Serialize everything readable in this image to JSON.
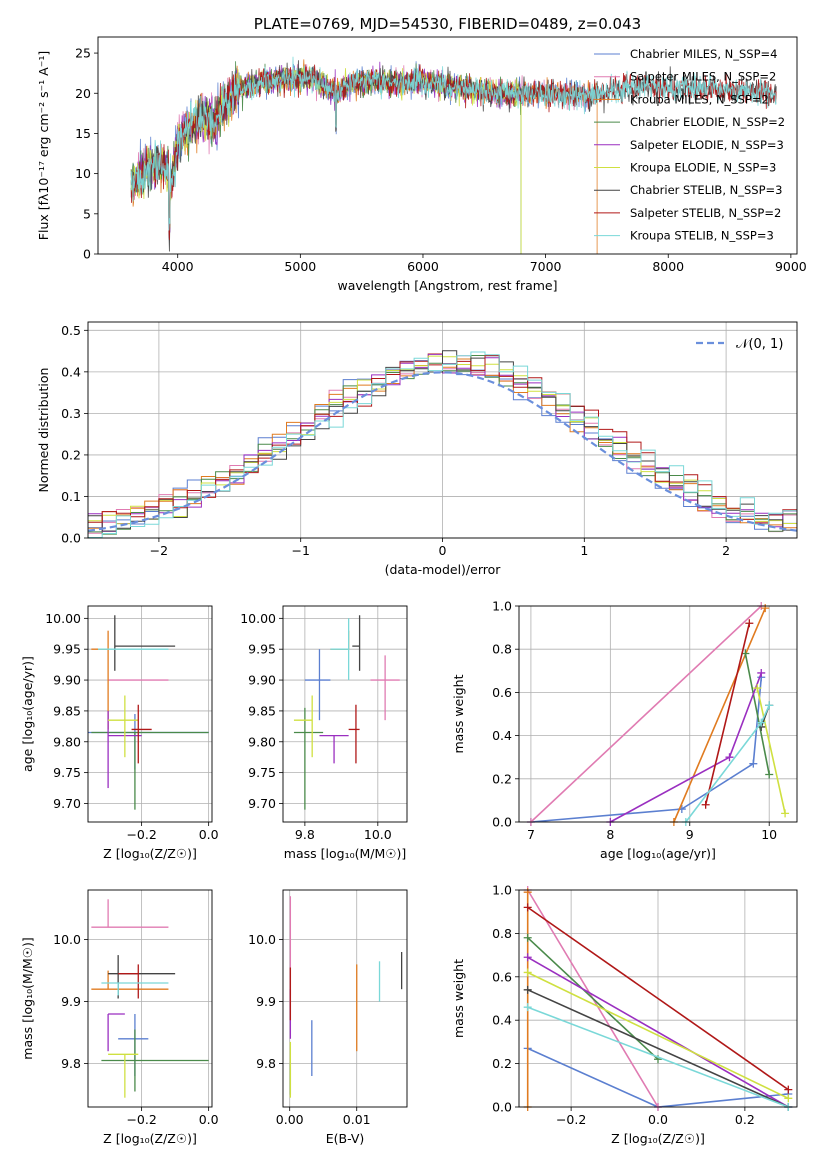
{
  "chart_data": [
    {
      "id": "spectrum",
      "type": "line",
      "title": "PLATE=0769, MJD=54530, FIBERID=0489, z=0.043",
      "xlabel": "wavelength [Angstrom, rest frame]",
      "ylabel": "Flux [fλ10⁻¹⁷ erg cm⁻² s⁻¹ A⁻¹]",
      "xlim": [
        3350,
        9050
      ],
      "ylim": [
        0,
        27
      ],
      "xticks": [
        "4000",
        "5000",
        "6000",
        "7000",
        "8000",
        "9000"
      ],
      "yticks": [
        "0",
        "5",
        "10",
        "15",
        "20",
        "25"
      ],
      "grid": false,
      "legend_position": "top-right",
      "continuum": [
        [
          3620,
          8.5
        ],
        [
          3700,
          10
        ],
        [
          3800,
          11
        ],
        [
          3900,
          11
        ],
        [
          3950,
          9
        ],
        [
          4000,
          14
        ],
        [
          4100,
          16
        ],
        [
          4200,
          17
        ],
        [
          4300,
          16.5
        ],
        [
          4400,
          19
        ],
        [
          4500,
          20.5
        ],
        [
          4700,
          21.5
        ],
        [
          4900,
          21.8
        ],
        [
          5100,
          22
        ],
        [
          5300,
          20
        ],
        [
          5400,
          21.2
        ],
        [
          5600,
          21.5
        ],
        [
          5800,
          21.3
        ],
        [
          6000,
          21.5
        ],
        [
          6200,
          21
        ],
        [
          6400,
          20.5
        ],
        [
          6600,
          20
        ],
        [
          6800,
          20
        ],
        [
          7000,
          20
        ],
        [
          7200,
          19.8
        ],
        [
          7400,
          19.7
        ],
        [
          7600,
          20.5
        ],
        [
          7800,
          21
        ],
        [
          8000,
          20.5
        ],
        [
          8200,
          20.8
        ],
        [
          8400,
          20.5
        ],
        [
          8600,
          20.3
        ],
        [
          8800,
          20
        ],
        [
          8880,
          20
        ]
      ],
      "series": [
        {
          "name": "Chabrier MILES, N_SSP=4",
          "color": "#5b7fd0",
          "range": [
            3620,
            7420
          ]
        },
        {
          "name": "Salpeter MILES, N_SSP=2",
          "color": "#e07bb2",
          "range": [
            3620,
            7420
          ]
        },
        {
          "name": "Kroupa MILES, N_SSP=2",
          "color": "#e07b20",
          "range": [
            3620,
            7420
          ],
          "drop_at": 7420
        },
        {
          "name": "Chabrier ELODIE, N_SSP=2",
          "color": "#4a8a4a",
          "range": [
            3620,
            6800
          ],
          "drop_at": 6800
        },
        {
          "name": "Salpeter ELODIE, N_SSP=3",
          "color": "#9a2fc0",
          "range": [
            3620,
            6800
          ]
        },
        {
          "name": "Kroupa ELODIE, N_SSP=3",
          "color": "#cfe040",
          "range": [
            3620,
            6800
          ],
          "drop_at": 6800
        },
        {
          "name": "Chabrier STELIB, N_SSP=3",
          "color": "#444444",
          "range": [
            3620,
            8880
          ]
        },
        {
          "name": "Salpeter STELIB, N_SSP=2",
          "color": "#b01818",
          "range": [
            3620,
            8880
          ]
        },
        {
          "name": "Kroupa STELIB, N_SSP=3",
          "color": "#7ad8d8",
          "range": [
            3620,
            8880
          ]
        }
      ]
    },
    {
      "id": "residuals",
      "type": "line",
      "xlabel": "(data-model)/error",
      "ylabel": "Normed distribution",
      "xlim": [
        -2.5,
        2.5
      ],
      "ylim": [
        0,
        0.52
      ],
      "xticks": [
        "−2",
        "−1",
        "0",
        "1",
        "2"
      ],
      "yticks": [
        "0.0",
        "0.1",
        "0.2",
        "0.3",
        "0.4",
        "0.5"
      ],
      "grid": true,
      "legend_position": "top-right",
      "legend": [
        "𝒩(0, 1)"
      ],
      "bin_width": 0.1,
      "colors": [
        "#5b7fd0",
        "#e07bb2",
        "#e07b20",
        "#4a8a4a",
        "#9a2fc0",
        "#cfe040",
        "#444444",
        "#b01818",
        "#7ad8d8"
      ]
    },
    {
      "id": "age-vs-Z",
      "type": "scatter",
      "xlabel": "Z [log₁₀(Z/Z☉)]",
      "ylabel": "age  [log₁₀(age/yr)]",
      "xlim": [
        -0.36,
        0.01
      ],
      "ylim": [
        9.67,
        10.02
      ],
      "xticks": [
        "−0.2",
        "0.0"
      ],
      "yticks": [
        "9.70",
        "9.75",
        "9.80",
        "9.85",
        "9.90",
        "9.95",
        "10.00"
      ],
      "grid": true,
      "points": [
        {
          "x": -0.22,
          "y": 9.815,
          "xerr": [
            0.22,
            0.22
          ],
          "yerr": [
            0.06,
            0.03
          ],
          "color": "#5b7fd0"
        },
        {
          "x": -0.3,
          "y": 9.9,
          "xerr": [
            0.0,
            0.18
          ],
          "yerr": [
            0.0,
            0.0
          ],
          "color": "#e07bb2"
        },
        {
          "x": -0.3,
          "y": 9.95,
          "xerr": [
            0.05,
            0.0
          ],
          "yerr": [
            0.13,
            0.03
          ],
          "color": "#e07b20"
        },
        {
          "x": -0.22,
          "y": 9.815,
          "xerr": [
            0.13,
            0.22
          ],
          "yerr": [
            0.125,
            0.0
          ],
          "color": "#4a8a4a"
        },
        {
          "x": -0.3,
          "y": 9.81,
          "xerr": [
            0.0,
            0.1
          ],
          "yerr": [
            0.085,
            0.04
          ],
          "color": "#9a2fc0"
        },
        {
          "x": -0.25,
          "y": 9.835,
          "xerr": [
            0.05,
            0.04
          ],
          "yerr": [
            0.06,
            0.04
          ],
          "color": "#cfe040"
        },
        {
          "x": -0.28,
          "y": 9.955,
          "xerr": [
            0.0,
            0.18
          ],
          "yerr": [
            0.04,
            0.05
          ],
          "color": "#444444"
        },
        {
          "x": -0.21,
          "y": 9.82,
          "xerr": [
            0.02,
            0.04
          ],
          "yerr": [
            0.055,
            0.04
          ],
          "color": "#b01818"
        },
        {
          "x": -0.28,
          "y": 9.95,
          "xerr": [
            0.05,
            0.16
          ],
          "yerr": [
            0.0,
            0.0
          ],
          "color": "#7ad8d8"
        }
      ]
    },
    {
      "id": "age-vs-mass",
      "type": "scatter",
      "xlabel": "mass [log₁₀(M/M☉)]",
      "xlim": [
        9.74,
        10.08
      ],
      "ylim": [
        9.67,
        10.02
      ],
      "xticks": [
        "9.8",
        "10.0"
      ],
      "yticks": [
        "9.70",
        "9.75",
        "9.80",
        "9.85",
        "9.90",
        "9.95",
        "10.00"
      ],
      "grid": true,
      "points": [
        {
          "x": 9.84,
          "y": 9.9,
          "xerr": [
            0.04,
            0.03
          ],
          "yerr": [
            0.065,
            0.05
          ],
          "color": "#5b7fd0"
        },
        {
          "x": 10.02,
          "y": 9.9,
          "xerr": [
            0.04,
            0.04
          ],
          "yerr": [
            0.065,
            0.04
          ],
          "color": "#e07bb2"
        },
        {
          "x": 9.92,
          "y": 9.95,
          "xerr": [
            0.05,
            0.0
          ],
          "yerr": [
            0.0,
            0.03
          ],
          "color": "#e07b20"
        },
        {
          "x": 9.8,
          "y": 9.815,
          "xerr": [
            0.03,
            0.05
          ],
          "yerr": [
            0.125,
            0.04
          ],
          "color": "#4a8a4a"
        },
        {
          "x": 9.88,
          "y": 9.81,
          "xerr": [
            0.04,
            0.04
          ],
          "yerr": [
            0.045,
            0.0
          ],
          "color": "#9a2fc0"
        },
        {
          "x": 9.82,
          "y": 9.835,
          "xerr": [
            0.05,
            0.0
          ],
          "yerr": [
            0.06,
            0.04
          ],
          "color": "#cfe040"
        },
        {
          "x": 9.95,
          "y": 9.955,
          "xerr": [
            0.02,
            0.0
          ],
          "yerr": [
            0.04,
            0.05
          ],
          "color": "#444444"
        },
        {
          "x": 9.94,
          "y": 9.82,
          "xerr": [
            0.02,
            0.01
          ],
          "yerr": [
            0.055,
            0.04
          ],
          "color": "#b01818"
        },
        {
          "x": 9.92,
          "y": 9.95,
          "xerr": [
            0.05,
            0.0
          ],
          "yerr": [
            0.05,
            0.05
          ],
          "color": "#7ad8d8"
        }
      ]
    },
    {
      "id": "weight-vs-age",
      "type": "line",
      "xlabel": "age  [log₁₀(age/yr)]",
      "ylabel": "mass weight",
      "xlim": [
        6.85,
        10.35
      ],
      "ylim": [
        0,
        1
      ],
      "xticks": [
        "7",
        "8",
        "9",
        "10"
      ],
      "yticks": [
        "0.0",
        "0.2",
        "0.4",
        "0.6",
        "0.8",
        "1.0"
      ],
      "grid": true,
      "series": [
        {
          "color": "#5b7fd0",
          "points": [
            [
              7.0,
              0.0
            ],
            [
              8.9,
              0.06
            ],
            [
              9.8,
              0.27
            ],
            [
              9.9,
              0.67
            ]
          ]
        },
        {
          "color": "#e07bb2",
          "points": [
            [
              7.0,
              0.0
            ],
            [
              9.9,
              1.0
            ]
          ]
        },
        {
          "color": "#e07b20",
          "points": [
            [
              8.8,
              0.0
            ],
            [
              9.95,
              0.99
            ]
          ]
        },
        {
          "color": "#4a8a4a",
          "points": [
            [
              9.7,
              0.78
            ],
            [
              10.0,
              0.22
            ]
          ]
        },
        {
          "color": "#9a2fc0",
          "points": [
            [
              8.0,
              0.0
            ],
            [
              9.5,
              0.3
            ],
            [
              9.9,
              0.69
            ]
          ]
        },
        {
          "color": "#cfe040",
          "points": [
            [
              9.85,
              0.62
            ],
            [
              10.2,
              0.04
            ]
          ]
        },
        {
          "color": "#444444",
          "points": [
            [
              9.9,
              0.44
            ],
            [
              10.0,
              0.54
            ]
          ]
        },
        {
          "color": "#b01818",
          "points": [
            [
              9.2,
              0.08
            ],
            [
              9.75,
              0.92
            ]
          ]
        },
        {
          "color": "#7ad8d8",
          "points": [
            [
              8.95,
              0.0
            ],
            [
              9.9,
              0.46
            ],
            [
              10.0,
              0.54
            ]
          ]
        }
      ]
    },
    {
      "id": "mass-vs-Z",
      "type": "scatter",
      "xlabel": "Z [log₁₀(Z/Z☉)]",
      "ylabel": "mass [log₁₀(M/M☉)]",
      "xlim": [
        -0.36,
        0.01
      ],
      "ylim": [
        9.73,
        10.08
      ],
      "xticks": [
        "−0.2",
        "0.0"
      ],
      "yticks": [
        "9.8",
        "9.9",
        "10.0"
      ],
      "grid": true,
      "points": [
        {
          "x": -0.22,
          "y": 9.84,
          "xerr": [
            0.05,
            0.04
          ],
          "yerr": [
            0.06,
            0.04
          ],
          "color": "#5b7fd0"
        },
        {
          "x": -0.3,
          "y": 10.02,
          "xerr": [
            0.05,
            0.18
          ],
          "yerr": [
            0.0,
            0.045
          ],
          "color": "#e07bb2"
        },
        {
          "x": -0.3,
          "y": 9.92,
          "xerr": [
            0.05,
            0.18
          ],
          "yerr": [
            0.0,
            0.03
          ],
          "color": "#e07b20"
        },
        {
          "x": -0.22,
          "y": 9.805,
          "xerr": [
            0.1,
            0.22
          ],
          "yerr": [
            0.05,
            0.05
          ],
          "color": "#4a8a4a"
        },
        {
          "x": -0.3,
          "y": 9.88,
          "xerr": [
            0.0,
            0.05
          ],
          "yerr": [
            0.06,
            0.0
          ],
          "color": "#9a2fc0"
        },
        {
          "x": -0.25,
          "y": 9.815,
          "xerr": [
            0.05,
            0.04
          ],
          "yerr": [
            0.07,
            0.0
          ],
          "color": "#cfe040"
        },
        {
          "x": -0.27,
          "y": 9.945,
          "xerr": [
            0.03,
            0.17
          ],
          "yerr": [
            0.04,
            0.03
          ],
          "color": "#444444"
        },
        {
          "x": -0.21,
          "y": 9.945,
          "xerr": [
            0.06,
            0.0
          ],
          "yerr": [
            0.04,
            0.015
          ],
          "color": "#b01818"
        },
        {
          "x": -0.27,
          "y": 9.93,
          "xerr": [
            0.05,
            0.15
          ],
          "yerr": [
            0.02,
            0.0
          ],
          "color": "#7ad8d8"
        }
      ]
    },
    {
      "id": "mass-vs-EBV",
      "type": "scatter",
      "xlabel": "E(B-V)",
      "xlim": [
        -0.001,
        0.0175
      ],
      "ylim": [
        9.73,
        10.08
      ],
      "xticks": [
        "0.00",
        "0.01"
      ],
      "yticks": [
        "9.8",
        "9.9",
        "10.0"
      ],
      "grid": true,
      "points": [
        {
          "x": 0.0033,
          "y": 9.84,
          "xerr": [
            0,
            0
          ],
          "yerr": [
            0.06,
            0.03
          ],
          "color": "#5b7fd0"
        },
        {
          "x": 0.0001,
          "y": 10.0,
          "xerr": [
            0,
            0
          ],
          "yerr": [
            0.09,
            0.07
          ],
          "color": "#e07bb2"
        },
        {
          "x": 0.01,
          "y": 9.89,
          "xerr": [
            0,
            0
          ],
          "yerr": [
            0.07,
            0.07
          ],
          "color": "#e07b20"
        },
        {
          "x": 0.0001,
          "y": 9.8,
          "xerr": [
            0,
            0
          ],
          "yerr": [
            0.05,
            0.0
          ],
          "color": "#4a8a4a"
        },
        {
          "x": 0.0001,
          "y": 9.88,
          "xerr": [
            0,
            0
          ],
          "yerr": [
            0.04,
            0.04
          ],
          "color": "#9a2fc0"
        },
        {
          "x": 0.0001,
          "y": 9.795,
          "xerr": [
            0,
            0
          ],
          "yerr": [
            0.05,
            0.04
          ],
          "color": "#cfe040"
        },
        {
          "x": 0.0167,
          "y": 9.95,
          "xerr": [
            0,
            0
          ],
          "yerr": [
            0.03,
            0.03
          ],
          "color": "#444444"
        },
        {
          "x": 0.0001,
          "y": 9.91,
          "xerr": [
            0,
            0
          ],
          "yerr": [
            0.04,
            0.045
          ],
          "color": "#b01818"
        },
        {
          "x": 0.0134,
          "y": 9.93,
          "xerr": [
            0,
            0
          ],
          "yerr": [
            0.03,
            0.035
          ],
          "color": "#7ad8d8"
        }
      ]
    },
    {
      "id": "weight-vs-Z",
      "type": "line",
      "xlabel": "Z [log₁₀(Z/Z☉)]",
      "ylabel": "mass weight",
      "xlim": [
        -0.32,
        0.32
      ],
      "ylim": [
        0,
        1
      ],
      "xticks": [
        "−0.2",
        "0.0",
        "0.2"
      ],
      "yticks": [
        "0.0",
        "0.2",
        "0.4",
        "0.6",
        "0.8",
        "1.0"
      ],
      "grid": true,
      "series": [
        {
          "color": "#5b7fd0",
          "points": [
            [
              -0.3,
              0.27
            ],
            [
              0.0,
              0.0
            ],
            [
              0.3,
              0.06
            ]
          ]
        },
        {
          "color": "#e07bb2",
          "points": [
            [
              -0.3,
              1.0
            ],
            [
              0.0,
              0.0
            ]
          ]
        },
        {
          "color": "#e07b20",
          "points": [
            [
              -0.3,
              0.0
            ],
            [
              -0.3,
              0.99
            ]
          ]
        },
        {
          "color": "#4a8a4a",
          "points": [
            [
              -0.3,
              0.78
            ],
            [
              0.0,
              0.22
            ]
          ]
        },
        {
          "color": "#9a2fc0",
          "points": [
            [
              -0.3,
              0.69
            ],
            [
              0.3,
              0.0
            ]
          ]
        },
        {
          "color": "#cfe040",
          "points": [
            [
              -0.3,
              0.62
            ],
            [
              0.3,
              0.04
            ]
          ]
        },
        {
          "color": "#444444",
          "points": [
            [
              -0.3,
              0.54
            ],
            [
              0.3,
              0.0
            ]
          ]
        },
        {
          "color": "#b01818",
          "points": [
            [
              -0.3,
              0.92
            ],
            [
              0.3,
              0.08
            ]
          ]
        },
        {
          "color": "#7ad8d8",
          "points": [
            [
              -0.3,
              0.46
            ],
            [
              0.3,
              0.0
            ]
          ]
        }
      ]
    }
  ]
}
